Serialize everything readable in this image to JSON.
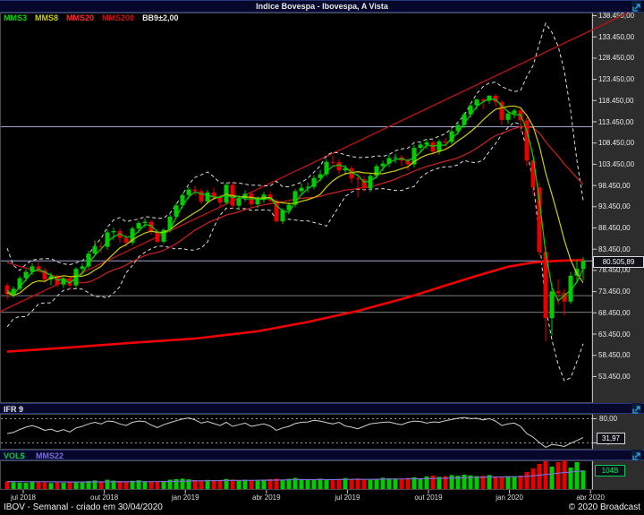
{
  "header": {
    "title": "Indice Bovespa - Ibovespa, A Vista"
  },
  "legend": {
    "items": [
      {
        "label": "MMS3",
        "color": "#00d800"
      },
      {
        "label": "MMS8",
        "color": "#cfcf00"
      },
      {
        "label": "MMS20",
        "color": "#ff2a2a"
      },
      {
        "label": "MMS200",
        "color": "#d01010"
      },
      {
        "label": "BB9±2,00",
        "color": "#e8e8e8"
      }
    ]
  },
  "quote": {
    "last": "80.505,89"
  },
  "panels": {
    "ifr": {
      "title": "IFR 9",
      "upper_level": "80,00",
      "lower_level": "20,00",
      "last": "31,97"
    },
    "vol": {
      "title": "VOL$",
      "ma_label": "MMS22",
      "last": "104B",
      "accent": "#00cc44",
      "ma_color": "#7a6fd8"
    }
  },
  "status": {
    "left": "IBOV - Semanal - criado em 30/04/2020",
    "right": "© 2020 Broadcast"
  },
  "chart_data": {
    "type": "candlestick",
    "title": "Indice Bovespa - Ibovespa, A Vista",
    "periodicity": "weekly",
    "x_labels": [
      "jul 2018",
      "out 2018",
      "jan 2019",
      "abr 2019",
      "jul 2019",
      "out 2019",
      "jan 2020",
      "abr 2020"
    ],
    "y_axis": {
      "max": 138450,
      "min": 53450,
      "step": 5000
    },
    "y_tick_labels": [
      "138.450,00",
      "133.450,00",
      "128.450,00",
      "123.450,00",
      "118.450,00",
      "113.450,00",
      "108.450,00",
      "103.450,00",
      "98.450,00",
      "93.450,00",
      "88.450,00",
      "83.450,00",
      "78.450,00",
      "73.450,00",
      "68.450,00",
      "63.450,00",
      "58.450,00",
      "53.450,00"
    ],
    "last_price": 80505.89,
    "candles_thousands": [
      [
        74.8,
        75.4,
        71.5,
        72.8
      ],
      [
        72.8,
        74.6,
        71.9,
        74.0
      ],
      [
        74.0,
        77.0,
        73.6,
        76.5
      ],
      [
        76.5,
        78.6,
        75.8,
        78.0
      ],
      [
        78.0,
        80.0,
        77.3,
        79.3
      ],
      [
        79.3,
        80.4,
        77.9,
        78.4
      ],
      [
        78.4,
        78.9,
        75.4,
        76.2
      ],
      [
        76.2,
        77.8,
        74.9,
        77.0
      ],
      [
        77.0,
        77.4,
        74.4,
        75.0
      ],
      [
        75.0,
        76.9,
        74.2,
        76.4
      ],
      [
        76.4,
        76.8,
        73.7,
        74.8
      ],
      [
        74.8,
        79.1,
        74.3,
        78.7
      ],
      [
        78.7,
        80.0,
        77.8,
        79.3
      ],
      [
        79.3,
        83.0,
        78.8,
        82.3
      ],
      [
        82.3,
        85.4,
        81.8,
        84.0
      ],
      [
        84.0,
        85.1,
        82.4,
        83.9
      ],
      [
        83.9,
        88.0,
        83.2,
        87.3
      ],
      [
        87.3,
        88.4,
        85.6,
        87.6
      ],
      [
        87.6,
        88.2,
        84.8,
        86.0
      ],
      [
        86.0,
        86.9,
        83.9,
        84.9
      ],
      [
        84.9,
        88.7,
        84.3,
        88.2
      ],
      [
        88.2,
        90.0,
        87.2,
        89.5
      ],
      [
        89.5,
        90.6,
        88.4,
        89.8
      ],
      [
        89.8,
        90.2,
        86.8,
        87.4
      ],
      [
        87.4,
        88.0,
        84.7,
        85.1
      ],
      [
        85.1,
        88.3,
        84.6,
        87.9
      ],
      [
        87.9,
        91.6,
        87.3,
        91.0
      ],
      [
        91.0,
        94.3,
        90.5,
        93.7
      ],
      [
        93.7,
        96.6,
        93.0,
        96.1
      ],
      [
        96.1,
        98.0,
        95.2,
        97.4
      ],
      [
        97.4,
        98.3,
        95.9,
        97.0
      ],
      [
        97.0,
        97.6,
        93.9,
        94.6
      ],
      [
        94.6,
        97.3,
        94.0,
        96.7
      ],
      [
        96.7,
        97.8,
        94.9,
        95.6
      ],
      [
        95.6,
        96.2,
        93.1,
        94.3
      ],
      [
        94.3,
        99.0,
        93.8,
        98.5
      ],
      [
        98.5,
        99.2,
        92.9,
        93.6
      ],
      [
        93.6,
        96.1,
        92.6,
        95.4
      ],
      [
        95.4,
        97.2,
        94.6,
        96.4
      ],
      [
        96.4,
        97.0,
        93.3,
        93.9
      ],
      [
        93.9,
        95.8,
        93.0,
        95.1
      ],
      [
        95.1,
        96.8,
        94.3,
        96.2
      ],
      [
        96.2,
        96.9,
        94.0,
        94.8
      ],
      [
        94.8,
        95.2,
        89.6,
        89.9
      ],
      [
        89.9,
        93.0,
        89.3,
        92.5
      ],
      [
        92.5,
        94.4,
        91.6,
        93.8
      ],
      [
        93.8,
        97.5,
        93.2,
        97.0
      ],
      [
        97.0,
        98.8,
        96.2,
        97.8
      ],
      [
        97.8,
        99.0,
        96.7,
        98.0
      ],
      [
        98.0,
        100.8,
        97.4,
        100.1
      ],
      [
        100.1,
        102.0,
        99.3,
        101.0
      ],
      [
        101.0,
        104.6,
        100.4,
        103.9
      ],
      [
        103.9,
        105.3,
        102.9,
        103.8
      ],
      [
        103.8,
        104.5,
        101.0,
        101.9
      ],
      [
        101.9,
        103.2,
        100.8,
        102.4
      ],
      [
        102.4,
        102.9,
        98.9,
        100.0
      ],
      [
        100.0,
        101.4,
        95.6,
        99.8
      ],
      [
        99.8,
        100.5,
        96.9,
        97.7
      ],
      [
        97.7,
        101.2,
        96.8,
        100.6
      ],
      [
        100.6,
        103.4,
        100.0,
        102.9
      ],
      [
        102.9,
        104.2,
        101.8,
        103.5
      ],
      [
        103.5,
        105.6,
        102.7,
        104.8
      ],
      [
        104.8,
        105.8,
        103.6,
        105.0
      ],
      [
        105.0,
        105.5,
        102.9,
        104.2
      ],
      [
        104.2,
        104.9,
        101.9,
        103.3
      ],
      [
        103.3,
        107.9,
        102.6,
        107.2
      ],
      [
        107.2,
        108.7,
        106.1,
        108.0
      ],
      [
        108.0,
        109.3,
        107.0,
        108.5
      ],
      [
        108.5,
        109.0,
        105.5,
        106.3
      ],
      [
        106.3,
        109.2,
        105.6,
        108.7
      ],
      [
        108.7,
        109.6,
        107.3,
        108.6
      ],
      [
        108.6,
        111.6,
        108.0,
        111.1
      ],
      [
        111.1,
        113.2,
        110.4,
        112.6
      ],
      [
        112.6,
        115.6,
        111.9,
        115.1
      ],
      [
        115.1,
        117.7,
        114.4,
        117.2
      ],
      [
        117.2,
        118.9,
        116.2,
        118.6
      ],
      [
        118.6,
        119.0,
        116.3,
        118.3
      ],
      [
        118.3,
        119.6,
        117.6,
        119.5
      ],
      [
        119.5,
        119.8,
        117.0,
        118.0
      ],
      [
        118.0,
        118.5,
        112.6,
        113.8
      ],
      [
        113.8,
        116.0,
        112.9,
        115.3
      ],
      [
        115.3,
        116.4,
        114.2,
        116.0
      ],
      [
        116.0,
        116.5,
        111.0,
        113.7
      ],
      [
        113.7,
        114.4,
        102.9,
        104.2
      ],
      [
        104.2,
        104.8,
        95.9,
        97.9
      ],
      [
        97.9,
        99.0,
        81.9,
        82.7
      ],
      [
        82.7,
        84.0,
        61.7,
        67.1
      ],
      [
        67.1,
        75.0,
        63.0,
        73.4
      ],
      [
        73.4,
        76.2,
        70.2,
        73.0
      ],
      [
        73.0,
        74.0,
        67.8,
        71.0
      ],
      [
        71.0,
        78.0,
        70.5,
        77.1
      ],
      [
        77.1,
        80.8,
        75.3,
        78.7
      ],
      [
        78.7,
        81.5,
        76.1,
        80.5059
      ]
    ],
    "volumes_billions": [
      42,
      38,
      36,
      35,
      40,
      39,
      37,
      34,
      36,
      35,
      38,
      41,
      37,
      45,
      48,
      42,
      52,
      47,
      44,
      40,
      46,
      49,
      43,
      41,
      39,
      44,
      52,
      55,
      58,
      54,
      50,
      48,
      51,
      47,
      49,
      56,
      53,
      50,
      52,
      49,
      47,
      51,
      55,
      58,
      52,
      57,
      62,
      55,
      50,
      53,
      58,
      54,
      49,
      56,
      61,
      57,
      59,
      55,
      52,
      57,
      63,
      60,
      58,
      54,
      62,
      65,
      60,
      70,
      75,
      68,
      72,
      78,
      74,
      80,
      76,
      72,
      74,
      78,
      70,
      66,
      72,
      68,
      75,
      95,
      115,
      140,
      155,
      125,
      150,
      160,
      120,
      150,
      104
    ],
    "ifr9_values": [
      42,
      45,
      52,
      58,
      62,
      57,
      50,
      53,
      47,
      52,
      46,
      56,
      60,
      66,
      70,
      66,
      73,
      72,
      66,
      62,
      70,
      73,
      72,
      63,
      57,
      64,
      69,
      74,
      78,
      81,
      76,
      68,
      72,
      67,
      62,
      70,
      60,
      64,
      68,
      60,
      63,
      66,
      61,
      50,
      56,
      60,
      67,
      70,
      71,
      75,
      73,
      69,
      66,
      70,
      61,
      58,
      54,
      60,
      66,
      68,
      70,
      71,
      67,
      64,
      70,
      73,
      72,
      68,
      71,
      70,
      74,
      77,
      80,
      82,
      79,
      80,
      76,
      79,
      73,
      62,
      66,
      68,
      60,
      42,
      33,
      20,
      8,
      15,
      13,
      10,
      18,
      25,
      32
    ],
    "ifr_levels": [
      80,
      20
    ],
    "mms200_points_thousands": [
      [
        0,
        59.2
      ],
      [
        10,
        60.2
      ],
      [
        20,
        61.3
      ],
      [
        30,
        62.3
      ],
      [
        40,
        64.0
      ],
      [
        48,
        66.2
      ],
      [
        56,
        68.8
      ],
      [
        64,
        72.0
      ],
      [
        70,
        74.8
      ],
      [
        76,
        77.5
      ],
      [
        80,
        79.2
      ],
      [
        84,
        80.2
      ],
      [
        88,
        80.6
      ],
      [
        92,
        80.8
      ]
    ],
    "trendline": {
      "w1": -2,
      "p1_thousands": 68.0,
      "w2": 99,
      "p2_thousands": 138.9,
      "color": "#b81414"
    },
    "support_lines": [
      {
        "price": 112300,
        "color": "#9fa8cc"
      },
      {
        "price": 80700,
        "color": "#9fa8cc"
      },
      {
        "price": 72500,
        "color": "#7d7d7d"
      },
      {
        "price": 68600,
        "color": "#7d7d7d"
      }
    ],
    "ma_seed_closes_thousands": [
      84.5,
      85.2,
      86.1,
      86.9,
      85.4,
      84.8,
      85.9,
      84.9,
      83.6,
      82.2,
      87.0,
      84.0,
      79.0,
      72.0,
      68.5,
      70.0,
      74.5,
      77.0,
      71.0
    ],
    "colors": {
      "up": "#00cc00",
      "down": "#e60000",
      "bb": "#dcdcdc",
      "mms3": "#00d800",
      "mms8": "#cfcf00",
      "mms20": "#d22020",
      "mms200": "#f00000",
      "ifr_line": "#d0d0d0"
    }
  }
}
